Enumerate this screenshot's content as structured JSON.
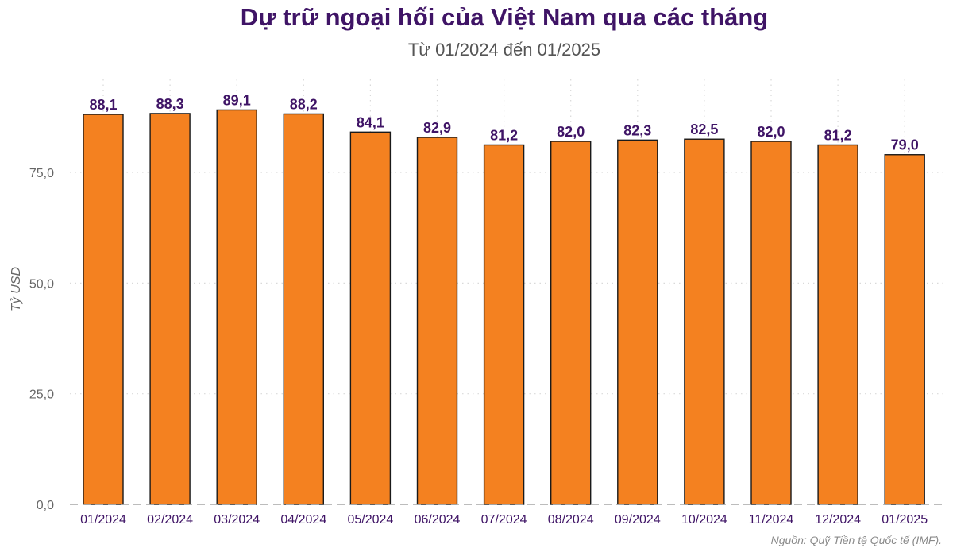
{
  "chart_data": {
    "type": "bar",
    "title": "Dự trữ ngoại hối của Việt Nam qua các tháng",
    "subtitle": "Từ 01/2024 đến 01/2025",
    "xlabel": "",
    "ylabel": "Tỷ USD",
    "caption": "Nguồn: Quỹ Tiền tệ Quốc tế (IMF).",
    "categories": [
      "01/2024",
      "02/2024",
      "03/2024",
      "04/2024",
      "05/2024",
      "06/2024",
      "07/2024",
      "08/2024",
      "09/2024",
      "10/2024",
      "11/2024",
      "12/2024",
      "01/2025"
    ],
    "values": [
      88.1,
      88.3,
      89.1,
      88.2,
      84.1,
      82.9,
      81.2,
      82.0,
      82.3,
      82.5,
      82.0,
      81.2,
      79.0
    ],
    "value_labels": [
      "88,1",
      "88,3",
      "89,1",
      "88,2",
      "84,1",
      "82,9",
      "81,2",
      "82,0",
      "82,3",
      "82,5",
      "82,0",
      "81,2",
      "79,0"
    ],
    "ylim": [
      0,
      96
    ],
    "yticks": [
      0,
      25,
      50,
      75
    ],
    "ytick_labels": [
      "0,0",
      "25,0",
      "50,0",
      "75,0"
    ],
    "grid": true,
    "grid_style": "dotted",
    "baseline_style": "dashed",
    "colors": {
      "bar_fill": "#f48120",
      "bar_stroke": "#1a1a1a",
      "title": "#3f1466",
      "value_label": "#3f1466",
      "x_tick_label": "#3f1466",
      "y_tick_label": "#666666",
      "grid": "#d9d9d9",
      "baseline": "#a6a6a6"
    }
  }
}
